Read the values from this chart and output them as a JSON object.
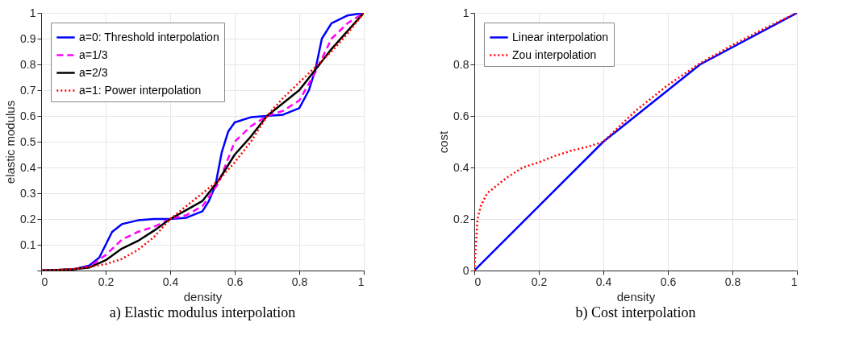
{
  "chart_data": [
    {
      "type": "line",
      "title": "a) Elastic modulus interpolation",
      "xlabel": "density",
      "ylabel": "elastic modulus",
      "xlim": [
        0,
        1
      ],
      "ylim": [
        0,
        1
      ],
      "xticks": [
        0,
        0.2,
        0.4,
        0.6,
        0.8,
        1
      ],
      "yticks": [
        {
          "value": 0,
          "label": null
        },
        0.1,
        0.2,
        0.3,
        0.4,
        0.5,
        0.6,
        0.7,
        0.8,
        0.9,
        1
      ],
      "grid": true,
      "legend": "top left",
      "series": [
        {
          "name": "a=0: Threshold interpolation",
          "color": "#0000ff",
          "line_style": "solid",
          "x": [
            0,
            0.1,
            0.15,
            0.18,
            0.2,
            0.22,
            0.25,
            0.3,
            0.35,
            0.4,
            0.45,
            0.5,
            0.52,
            0.54,
            0.56,
            0.58,
            0.6,
            0.65,
            0.7,
            0.75,
            0.8,
            0.83,
            0.85,
            0.87,
            0.9,
            0.95,
            1
          ],
          "values": [
            0,
            0.005,
            0.02,
            0.05,
            0.1,
            0.15,
            0.18,
            0.195,
            0.2,
            0.2,
            0.205,
            0.23,
            0.27,
            0.33,
            0.46,
            0.54,
            0.575,
            0.595,
            0.6,
            0.605,
            0.63,
            0.7,
            0.78,
            0.9,
            0.96,
            0.99,
            1
          ]
        },
        {
          "name": "a=1/3",
          "color": "#ff00ff",
          "line_style": "dashed",
          "x": [
            0,
            0.1,
            0.15,
            0.2,
            0.25,
            0.3,
            0.35,
            0.4,
            0.45,
            0.5,
            0.55,
            0.6,
            0.65,
            0.7,
            0.75,
            0.8,
            0.85,
            0.9,
            0.95,
            1
          ],
          "values": [
            0,
            0.005,
            0.015,
            0.06,
            0.12,
            0.15,
            0.17,
            0.2,
            0.215,
            0.25,
            0.34,
            0.5,
            0.56,
            0.6,
            0.62,
            0.66,
            0.77,
            0.9,
            0.96,
            1
          ]
        },
        {
          "name": "a=2/3",
          "color": "#000000",
          "line_style": "solid",
          "x": [
            0,
            0.1,
            0.15,
            0.2,
            0.25,
            0.3,
            0.35,
            0.4,
            0.45,
            0.5,
            0.55,
            0.6,
            0.65,
            0.7,
            0.75,
            0.8,
            0.85,
            0.9,
            0.95,
            1
          ],
          "values": [
            0,
            0.005,
            0.012,
            0.04,
            0.085,
            0.115,
            0.155,
            0.2,
            0.235,
            0.27,
            0.35,
            0.45,
            0.52,
            0.6,
            0.65,
            0.7,
            0.78,
            0.86,
            0.93,
            1
          ]
        },
        {
          "name": "a=1: Power interpolation",
          "color": "#ff0000",
          "line_style": "dotted",
          "x": [
            0,
            0.05,
            0.1,
            0.15,
            0.2,
            0.25,
            0.3,
            0.35,
            0.4,
            0.45,
            0.5,
            0.55,
            0.6,
            0.65,
            0.7,
            0.75,
            0.8,
            0.85,
            0.9,
            0.95,
            1
          ],
          "values": [
            0,
            0.002,
            0.006,
            0.014,
            0.025,
            0.045,
            0.08,
            0.13,
            0.2,
            0.25,
            0.3,
            0.35,
            0.42,
            0.5,
            0.6,
            0.67,
            0.73,
            0.79,
            0.85,
            0.92,
            1
          ]
        }
      ]
    },
    {
      "type": "line",
      "title": "b) Cost interpolation",
      "xlabel": "density",
      "ylabel": "cost",
      "xlim": [
        0,
        1
      ],
      "ylim": [
        0,
        1
      ],
      "xticks": [
        0,
        0.2,
        0.4,
        0.6,
        0.8,
        1
      ],
      "yticks": [
        0,
        0.2,
        0.4,
        0.6,
        0.8,
        1
      ],
      "grid": true,
      "legend": "top left",
      "series": [
        {
          "name": "Linear interpolation",
          "color": "#0000ff",
          "line_style": "solid",
          "x": [
            0,
            0.4,
            0.7,
            1
          ],
          "values": [
            0,
            0.5,
            0.8,
            1
          ]
        },
        {
          "name": "Zou interpolation",
          "color": "#ff0000",
          "line_style": "dotted",
          "x": [
            0,
            0.005,
            0.01,
            0.02,
            0.04,
            0.07,
            0.1,
            0.15,
            0.2,
            0.25,
            0.3,
            0.35,
            0.4,
            0.5,
            0.6,
            0.7,
            0.8,
            0.9,
            1
          ],
          "values": [
            0,
            0.1,
            0.2,
            0.25,
            0.3,
            0.33,
            0.36,
            0.4,
            0.42,
            0.445,
            0.465,
            0.48,
            0.5,
            0.62,
            0.72,
            0.805,
            0.875,
            0.94,
            1
          ]
        }
      ]
    }
  ]
}
